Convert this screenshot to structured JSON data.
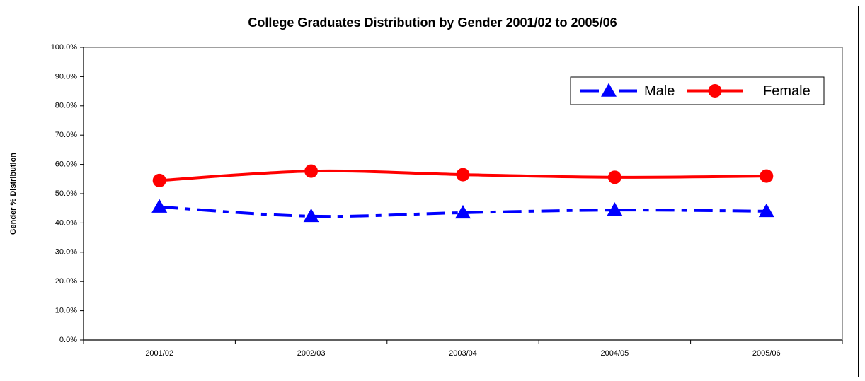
{
  "chart_data": {
    "type": "line",
    "title": "College Graduates Distribution by Gender 2001/02 to 2005/06",
    "y_label": "Gender % Distribution",
    "categories": [
      "2001/02",
      "2002/03",
      "2003/04",
      "2004/05",
      "2005/06"
    ],
    "series": [
      {
        "name": "Male",
        "color": "#0000ff",
        "marker": "triangle",
        "dash": "dashdot",
        "values": [
          45.5,
          42.3,
          43.5,
          44.4,
          44.0
        ]
      },
      {
        "name": "Female",
        "color": "#ff0000",
        "marker": "circle",
        "dash": "solid",
        "values": [
          54.5,
          57.7,
          56.5,
          55.6,
          56.0
        ]
      }
    ],
    "ylim": [
      0,
      100
    ],
    "yticks": [
      {
        "value": 0,
        "label": "0.0%"
      },
      {
        "value": 10,
        "label": "10.0%"
      },
      {
        "value": 20,
        "label": "20.0%"
      },
      {
        "value": 30,
        "label": "30.0%"
      },
      {
        "value": 40,
        "label": "40.0%"
      },
      {
        "value": 50,
        "label": "50.0%"
      },
      {
        "value": 60,
        "label": "60.0%"
      },
      {
        "value": 70,
        "label": "70.0%"
      },
      {
        "value": 80,
        "label": "80.0%"
      },
      {
        "value": 90,
        "label": "90.0%"
      },
      {
        "value": 100,
        "label": "100.0%"
      }
    ],
    "grid": false,
    "legend": "top-right"
  }
}
